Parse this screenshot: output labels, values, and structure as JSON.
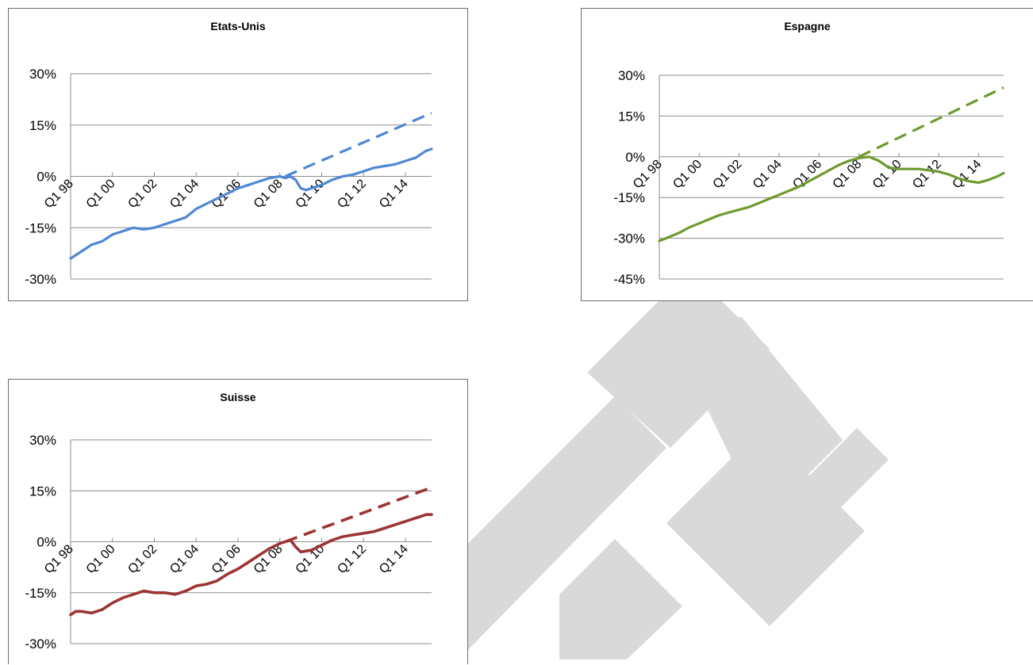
{
  "chart_data": [
    {
      "type": "line",
      "title": "Etats-Unis",
      "xlabel": "",
      "ylabel": "",
      "ylim": [
        -30,
        30
      ],
      "yticks": [
        "30%",
        "15%",
        "0%",
        "-15%",
        "-30%"
      ],
      "ytick_values": [
        30,
        15,
        0,
        -15,
        -30
      ],
      "xlim": [
        1998,
        2015.25
      ],
      "xticks": [
        "Q1 98",
        "Q1 00",
        "Q1 02",
        "Q1 04",
        "Q1 06",
        "Q1 08",
        "Q1 10",
        "Q1 12",
        "Q1 14"
      ],
      "xtick_values": [
        1998,
        2000,
        2002,
        2004,
        2006,
        2008,
        2010,
        2012,
        2014
      ],
      "grid": true,
      "color": "#4f87d6",
      "series": [
        {
          "style": "solid",
          "x": [
            1998,
            1998.5,
            1999,
            1999.5,
            2000,
            2000.5,
            2001,
            2001.5,
            2002,
            2002.5,
            2003,
            2003.5,
            2004,
            2004.5,
            2005,
            2005.5,
            2006,
            2006.5,
            2007,
            2007.5,
            2008,
            2008.25,
            2008.5,
            2008.75,
            2009,
            2009.25,
            2009.5,
            2010,
            2010.5,
            2011,
            2011.5,
            2012,
            2012.5,
            2013,
            2013.5,
            2014,
            2014.5,
            2015,
            2015.25
          ],
          "y": [
            -24,
            -22,
            -20,
            -19,
            -17,
            -16,
            -15,
            -15.5,
            -15,
            -14,
            -13,
            -12,
            -9.5,
            -8,
            -6.5,
            -5,
            -3.5,
            -2.5,
            -1.5,
            -0.5,
            0,
            -0.5,
            0,
            -1,
            -3.5,
            -4,
            -3.5,
            -2.5,
            -1,
            0,
            0.5,
            1.5,
            2.5,
            3,
            3.5,
            4.5,
            5.5,
            7.5,
            8
          ]
        },
        {
          "style": "dashed",
          "x": [
            2008.25,
            2015.25
          ],
          "y": [
            0,
            18.5
          ]
        }
      ]
    },
    {
      "type": "line",
      "title": "Espagne",
      "xlabel": "",
      "ylabel": "",
      "ylim": [
        -45,
        30
      ],
      "yticks": [
        "30%",
        "15%",
        "0%",
        "-15%",
        "-30%",
        "-45%"
      ],
      "ytick_values": [
        30,
        15,
        0,
        -15,
        -30,
        -45
      ],
      "xlim": [
        1998,
        2015.25
      ],
      "xticks": [
        "Q1 98",
        "Q1 00",
        "Q1 02",
        "Q1 04",
        "Q1 06",
        "Q1 08",
        "Q1 10",
        "Q1 12",
        "Q1 14"
      ],
      "xtick_values": [
        1998,
        2000,
        2002,
        2004,
        2006,
        2008,
        2010,
        2012,
        2014
      ],
      "grid": true,
      "color": "#6f9a2e",
      "series": [
        {
          "style": "solid",
          "x": [
            1998,
            1998.5,
            1999,
            1999.5,
            2000,
            2000.5,
            2001,
            2001.5,
            2002,
            2002.5,
            2003,
            2003.5,
            2004,
            2004.5,
            2005,
            2005.5,
            2006,
            2006.5,
            2007,
            2007.5,
            2008,
            2008.5,
            2009,
            2009.5,
            2010,
            2010.5,
            2011,
            2011.5,
            2012,
            2012.5,
            2013,
            2013.5,
            2014,
            2014.5,
            2015,
            2015.25
          ],
          "y": [
            -31,
            -29.5,
            -28,
            -26,
            -24.5,
            -23,
            -21.5,
            -20.5,
            -19.5,
            -18.5,
            -17,
            -15.5,
            -14,
            -12.5,
            -11,
            -9,
            -7,
            -5,
            -3,
            -1.5,
            -0.5,
            0,
            -1.5,
            -4,
            -4.5,
            -4.5,
            -4.5,
            -5,
            -5.5,
            -6.5,
            -8,
            -9,
            -9.5,
            -8.5,
            -7,
            -6
          ]
        },
        {
          "style": "dashed",
          "x": [
            2008,
            2015.25
          ],
          "y": [
            0,
            25.5
          ]
        }
      ]
    },
    {
      "type": "line",
      "title": "Suisse",
      "xlabel": "",
      "ylabel": "",
      "ylim": [
        -30,
        30
      ],
      "yticks": [
        "30%",
        "15%",
        "0%",
        "-15%",
        "-30%"
      ],
      "ytick_values": [
        30,
        15,
        0,
        -15,
        -30
      ],
      "xlim": [
        1998,
        2015.25
      ],
      "xticks": [
        "Q1 98",
        "Q1 00",
        "Q1 02",
        "Q1 04",
        "Q1 06",
        "Q1 08",
        "Q1 10",
        "Q1 12",
        "Q1 14"
      ],
      "xtick_values": [
        1998,
        2000,
        2002,
        2004,
        2006,
        2008,
        2010,
        2012,
        2014
      ],
      "grid": true,
      "color": "#9c3533",
      "series": [
        {
          "style": "solid",
          "x": [
            1998,
            1998.25,
            1998.5,
            1999,
            1999.5,
            2000,
            2000.5,
            2001,
            2001.5,
            2002,
            2002.5,
            2003,
            2003.5,
            2004,
            2004.5,
            2005,
            2005.5,
            2006,
            2006.5,
            2007,
            2007.5,
            2008,
            2008.25,
            2008.5,
            2008.75,
            2009,
            2009.5,
            2010,
            2010.5,
            2011,
            2011.5,
            2012,
            2012.5,
            2013,
            2013.5,
            2014,
            2014.5,
            2015,
            2015.25
          ],
          "y": [
            -21.5,
            -20.5,
            -20.5,
            -21,
            -20,
            -18,
            -16.5,
            -15.5,
            -14.5,
            -15,
            -15,
            -15.5,
            -14.5,
            -13,
            -12.5,
            -11.5,
            -9.5,
            -8,
            -6,
            -4,
            -2,
            -0.5,
            0,
            0.5,
            -1.5,
            -3,
            -2.5,
            -1,
            0.5,
            1.5,
            2,
            2.5,
            3,
            4,
            5,
            6,
            7,
            8,
            8
          ]
        },
        {
          "style": "dashed",
          "x": [
            2008.25,
            2015.25
          ],
          "y": [
            0,
            16
          ]
        }
      ]
    }
  ],
  "watermark": {
    "color": "#d9d9d9",
    "depicts": "letters-logo-watermark"
  }
}
